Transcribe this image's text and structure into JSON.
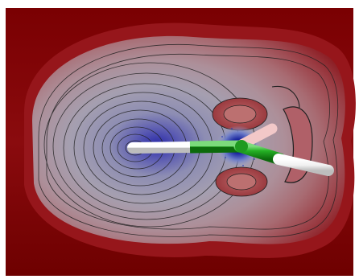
{
  "scene": {
    "subject": "molecular-electrostatic-potential-contour-map",
    "palette": {
      "outer_dark_red": "#6a0000",
      "mid_red": "#9a1d22",
      "salmon": "#b36a6a",
      "gray_center": "#9a9aa8",
      "deep_blue": "#1a1a9a",
      "bond_green": "#1fa01f",
      "atom_white": "#f4f4f4",
      "atom_pink": "#f2c8c8",
      "contour_line": "#202020"
    }
  }
}
